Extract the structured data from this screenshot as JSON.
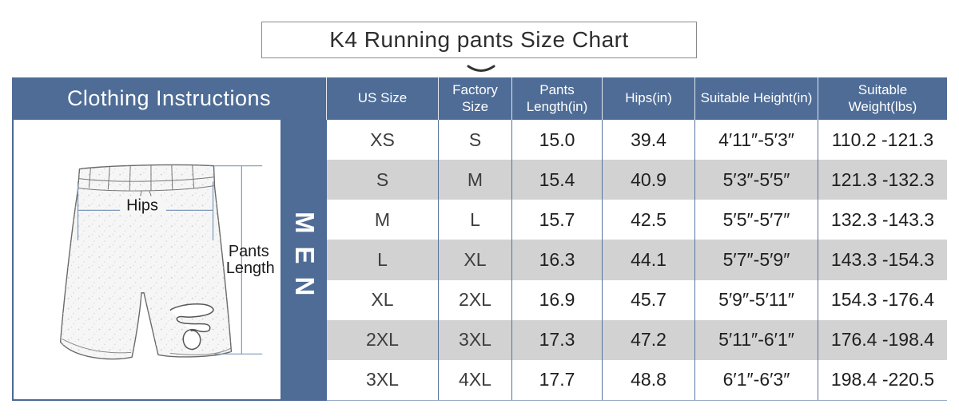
{
  "title": "K4 Running pants Size Chart",
  "colors": {
    "accent": "#4e6c96",
    "row_alt": "#d2d2d2",
    "grid_line": "#56749f"
  },
  "left_panel": {
    "header": "Clothing Instructions",
    "gender_label": "MEN",
    "diagram": {
      "hips_label": "Hips",
      "pants_length_line1": "Pants",
      "pants_length_line2": "Length"
    }
  },
  "table": {
    "columns": [
      "US Size",
      "Factory Size",
      "Pants Length(in)",
      "Hips(in)",
      "Suitable Height(in)",
      "Suitable Weight(lbs)"
    ],
    "rows": [
      [
        "XS",
        "S",
        "15.0",
        "39.4",
        "4′11″-5′3″",
        "110.2 -121.3"
      ],
      [
        "S",
        "M",
        "15.4",
        "40.9",
        "5′3″-5′5″",
        "121.3 -132.3"
      ],
      [
        "M",
        "L",
        "15.7",
        "42.5",
        "5′5″-5′7″",
        "132.3 -143.3"
      ],
      [
        "L",
        "XL",
        "16.3",
        "44.1",
        "5′7″-5′9″",
        "143.3 -154.3"
      ],
      [
        "XL",
        "2XL",
        "16.9",
        "45.7",
        "5′9″-5′11″",
        "154.3 -176.4"
      ],
      [
        "2XL",
        "3XL",
        "17.3",
        "47.2",
        "5′11″-6′1″",
        "176.4 -198.4"
      ],
      [
        "3XL",
        "4XL",
        "17.7",
        "48.8",
        "6′1″-6′3″",
        "198.4 -220.5"
      ]
    ]
  }
}
